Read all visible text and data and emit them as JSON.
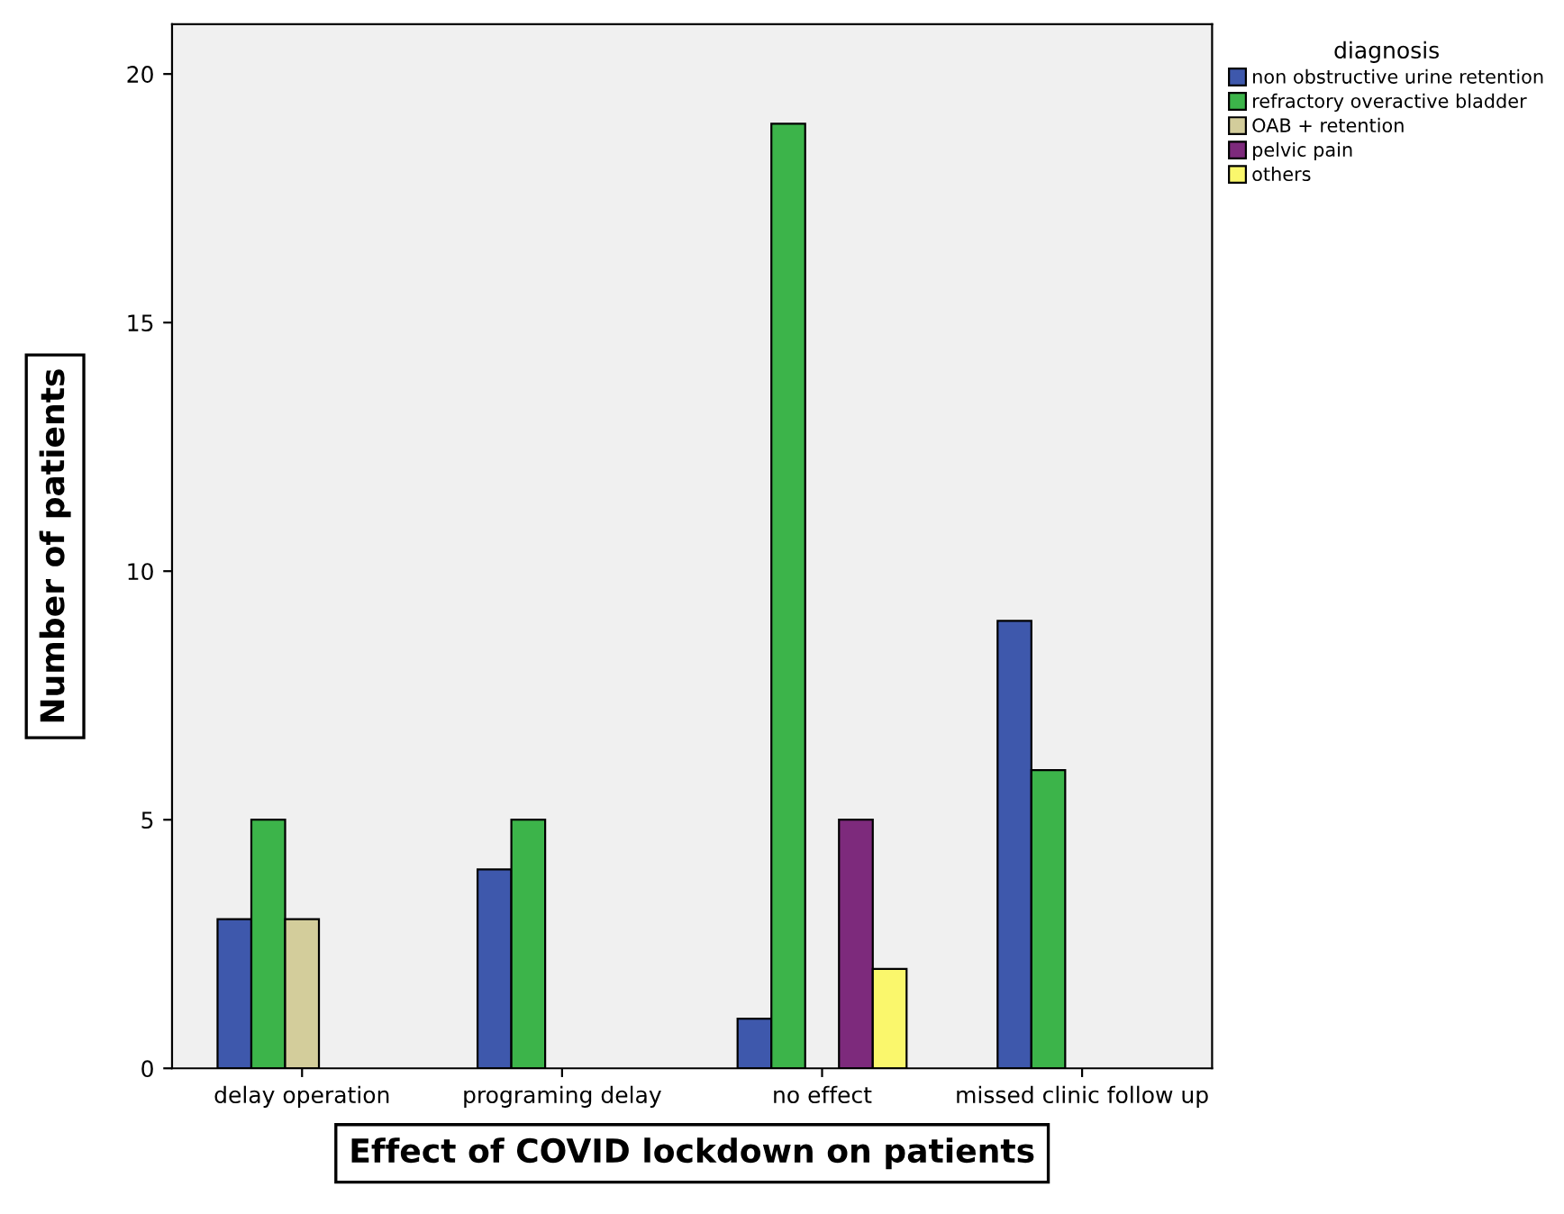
{
  "chart_data": {
    "type": "bar",
    "xlabel": "Effect of COVID lockdown on patients",
    "ylabel": "Number of patients",
    "legend_title": "diagnosis",
    "categories": [
      "delay operation",
      "programing delay",
      "no effect",
      "missed clinic follow up"
    ],
    "series": [
      {
        "name": "non obstructive urine retention",
        "color": "#3e58ac",
        "values": [
          3,
          4,
          1,
          9
        ]
      },
      {
        "name": "refractory overactive bladder",
        "color": "#3cb44a",
        "values": [
          5,
          5,
          19,
          6
        ]
      },
      {
        "name": "OAB + retention",
        "color": "#d3cd9b",
        "values": [
          3,
          null,
          null,
          null
        ]
      },
      {
        "name": "pelvic pain",
        "color": "#7d2a7c",
        "values": [
          null,
          null,
          5,
          null
        ]
      },
      {
        "name": "others",
        "color": "#faf76c",
        "values": [
          null,
          null,
          2,
          null
        ]
      }
    ],
    "ylim": [
      0,
      21
    ],
    "yticks": [
      0,
      5,
      10,
      15,
      20
    ],
    "grid": false,
    "legend": "right"
  }
}
